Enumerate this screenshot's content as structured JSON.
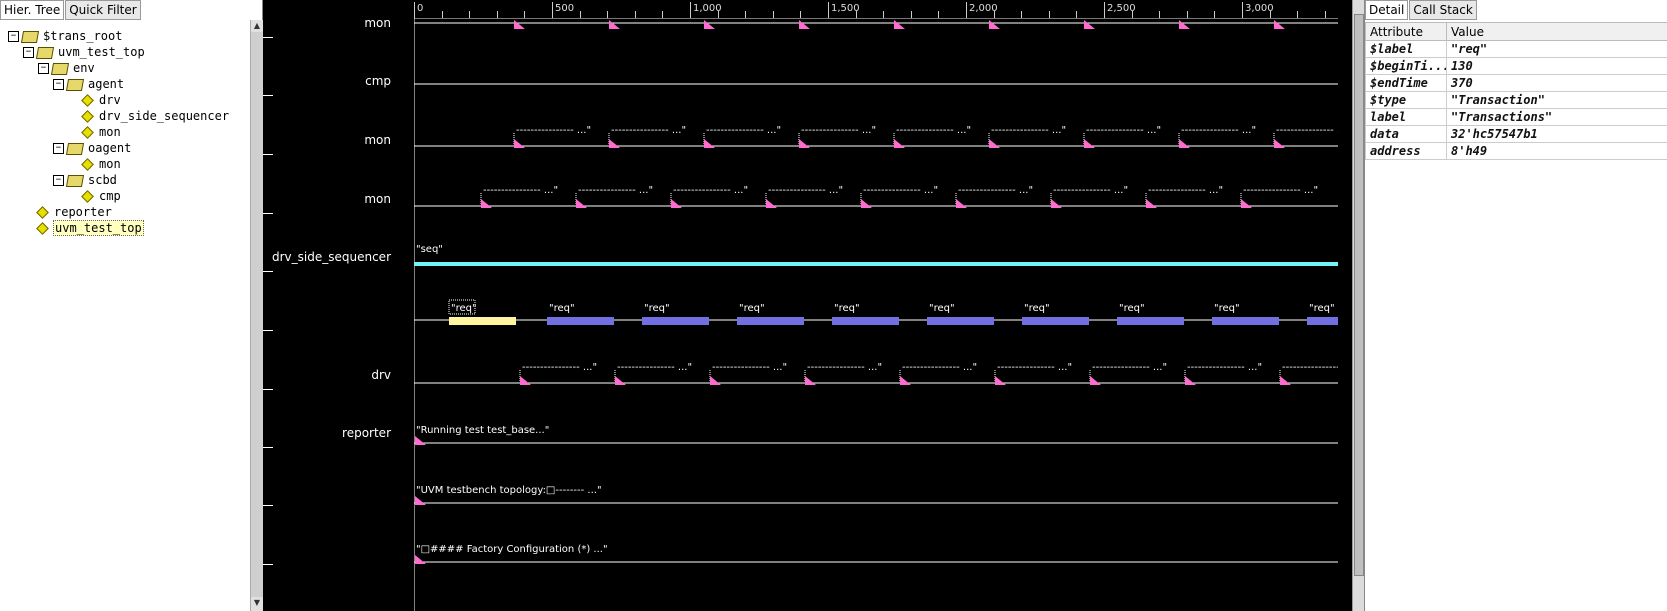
{
  "left_panel": {
    "tabs": [
      "Hier. Tree",
      "Quick Filter"
    ],
    "tree": [
      {
        "label": "$trans_root",
        "depth": 0,
        "type": "folder"
      },
      {
        "label": "uvm_test_top",
        "depth": 1,
        "type": "folder"
      },
      {
        "label": "env",
        "depth": 2,
        "type": "folder"
      },
      {
        "label": "agent",
        "depth": 3,
        "type": "folder"
      },
      {
        "label": "drv",
        "depth": 4,
        "type": "leaf"
      },
      {
        "label": "drv_side_sequencer",
        "depth": 4,
        "type": "leaf"
      },
      {
        "label": "mon",
        "depth": 4,
        "type": "leaf"
      },
      {
        "label": "oagent",
        "depth": 3,
        "type": "folder"
      },
      {
        "label": "mon",
        "depth": 4,
        "type": "leaf"
      },
      {
        "label": "scbd",
        "depth": 3,
        "type": "folder"
      },
      {
        "label": "cmp",
        "depth": 4,
        "type": "leaf"
      },
      {
        "label": "reporter",
        "depth": 1,
        "type": "leaf"
      },
      {
        "label": "uvm_test_top",
        "depth": 1,
        "type": "leaf",
        "selected": true
      }
    ]
  },
  "waveform": {
    "ruler_labels": [
      "0",
      "500",
      "1,000",
      "1,500",
      "2,000",
      "2,500",
      "3,000"
    ],
    "signal_names": [
      "mon",
      "cmp",
      "mon",
      "mon",
      "drv_side_sequencer",
      "",
      "drv",
      "reporter",
      "",
      ""
    ],
    "annotations": {
      "seq": "\"seq\"",
      "req": "\"req\"",
      "dash_text": "---------------- ...\"",
      "reporter_msgs": [
        "\"Running test test_base...\"",
        "\"UVM testbench topology:□-------- ...\"",
        "\"□#### Factory Configuration (*) ...\""
      ]
    },
    "colors": {
      "marker": "#ff6ccf",
      "seq_bar": "#6ff5f5",
      "req_bar": "#7070e0",
      "req_selected": "#fff4a0",
      "selection_band": "#3c3cbc"
    }
  },
  "right_panel": {
    "tabs": [
      "Detail",
      "Call Stack"
    ],
    "headers": [
      "Attribute",
      "Value"
    ],
    "rows": [
      {
        "k": "$label",
        "v": "\"req\""
      },
      {
        "k": "$beginTi...",
        "v": "130"
      },
      {
        "k": "$endTime",
        "v": "370"
      },
      {
        "k": "$type",
        "v": "\"Transaction\""
      },
      {
        "k": "label",
        "v": "\"Transactions\""
      },
      {
        "k": "data",
        "v": "32'hc57547b1"
      },
      {
        "k": "address",
        "v": "8'h49"
      }
    ]
  }
}
